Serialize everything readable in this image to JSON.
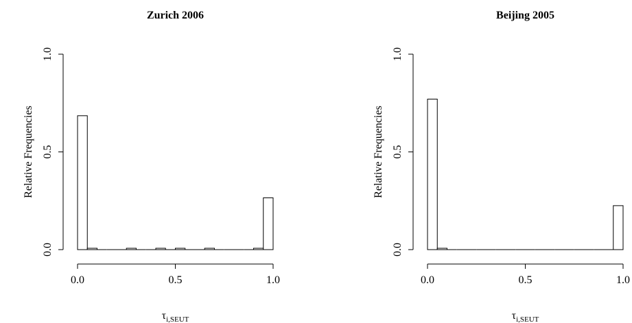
{
  "chart_data": [
    {
      "type": "histogram",
      "title": "Zurich 2006",
      "xlabel": {
        "symbol": "τ",
        "subscript": "i,SEUT"
      },
      "ylabel": "Relative Frequencies",
      "bins": [
        0,
        0.05,
        0.1,
        0.15,
        0.2,
        0.25,
        0.3,
        0.35,
        0.4,
        0.45,
        0.5,
        0.55,
        0.6,
        0.65,
        0.7,
        0.75,
        0.8,
        0.85,
        0.9,
        0.95,
        1
      ],
      "values": [
        0.685,
        0.007,
        0,
        0,
        0,
        0.007,
        0,
        0,
        0.007,
        0,
        0.007,
        0,
        0,
        0.007,
        0,
        0,
        0,
        0,
        0.007,
        0.265
      ],
      "color": "#ffffff",
      "xlim": [
        0,
        1
      ],
      "ylim": [
        0,
        1
      ],
      "xticks": [
        {
          "value": 0,
          "label": "0.0"
        },
        {
          "value": 0.5,
          "label": "0.5"
        },
        {
          "value": 1,
          "label": "1.0"
        }
      ],
      "yticks": [
        {
          "value": 0,
          "label": "0.0"
        },
        {
          "value": 0.5,
          "label": "0.5"
        },
        {
          "value": 1,
          "label": "1.0"
        }
      ]
    },
    {
      "type": "histogram",
      "title": "Beijing 2005",
      "xlabel": {
        "symbol": "τ",
        "subscript": "i,SEUT"
      },
      "ylabel": "Relative Frequencies",
      "bins": [
        0,
        0.05,
        0.1,
        0.15,
        0.2,
        0.25,
        0.3,
        0.35,
        0.4,
        0.45,
        0.5,
        0.55,
        0.6,
        0.65,
        0.7,
        0.75,
        0.8,
        0.85,
        0.9,
        0.95,
        1
      ],
      "values": [
        0.77,
        0.007,
        0,
        0,
        0,
        0,
        0,
        0,
        0,
        0,
        0,
        0,
        0,
        0,
        0,
        0,
        0,
        0,
        0,
        0.225
      ],
      "color": "#ffffff",
      "xlim": [
        0,
        1
      ],
      "ylim": [
        0,
        1
      ],
      "xticks": [
        {
          "value": 0,
          "label": "0.0"
        },
        {
          "value": 0.5,
          "label": "0.5"
        },
        {
          "value": 1,
          "label": "1.0"
        }
      ],
      "yticks": [
        {
          "value": 0,
          "label": "0.0"
        },
        {
          "value": 0.5,
          "label": "0.5"
        },
        {
          "value": 1,
          "label": "1.0"
        }
      ]
    }
  ]
}
